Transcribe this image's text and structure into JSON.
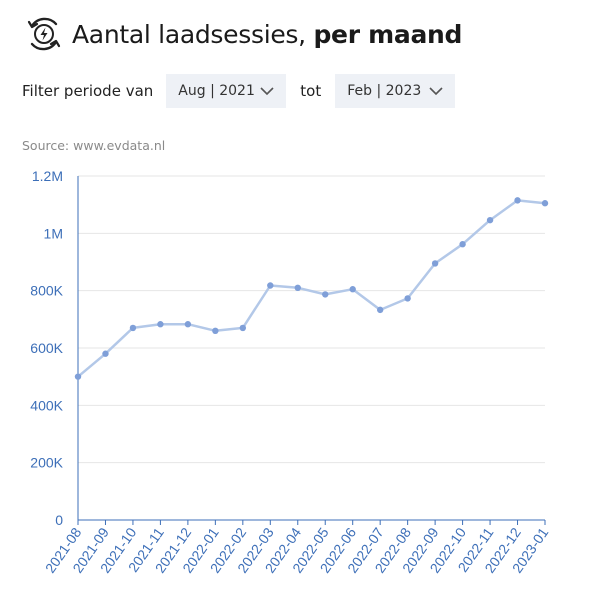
{
  "header": {
    "icon": "ev-charging-cycle-icon",
    "title_regular": "Aantal laadsessies,",
    "title_bold": "per maand"
  },
  "filter": {
    "label_from": "Filter periode van",
    "from_value": "Aug | 2021",
    "label_to": "tot",
    "to_value": "Feb | 2023"
  },
  "source": "Source: www.evdata.nl",
  "colors": {
    "line": "#b3c8e8",
    "point": "#7f9fd8",
    "axis": "#3d6fb8",
    "grid": "#e6e6e6"
  },
  "chart_data": {
    "type": "line",
    "x": [
      "2021-08",
      "2021-09",
      "2021-10",
      "2021-11",
      "2021-12",
      "2022-01",
      "2022-02",
      "2022-03",
      "2022-04",
      "2022-05",
      "2022-06",
      "2022-07",
      "2022-08",
      "2022-09",
      "2022-10",
      "2022-11",
      "2022-12",
      "2023-01"
    ],
    "values": [
      500000,
      580000,
      670000,
      683000,
      683000,
      660000,
      670000,
      818000,
      810000,
      787000,
      805000,
      733000,
      773000,
      895000,
      962000,
      1046000,
      1115000,
      1105000
    ],
    "yticks": [
      0,
      200000,
      400000,
      600000,
      800000,
      1000000,
      1200000
    ],
    "yticklabels": [
      "0",
      "200K",
      "400K",
      "600K",
      "800K",
      "1M",
      "1.2M"
    ],
    "ylim": [
      0,
      1200000
    ],
    "grid": true,
    "xlabel": "",
    "ylabel": ""
  }
}
